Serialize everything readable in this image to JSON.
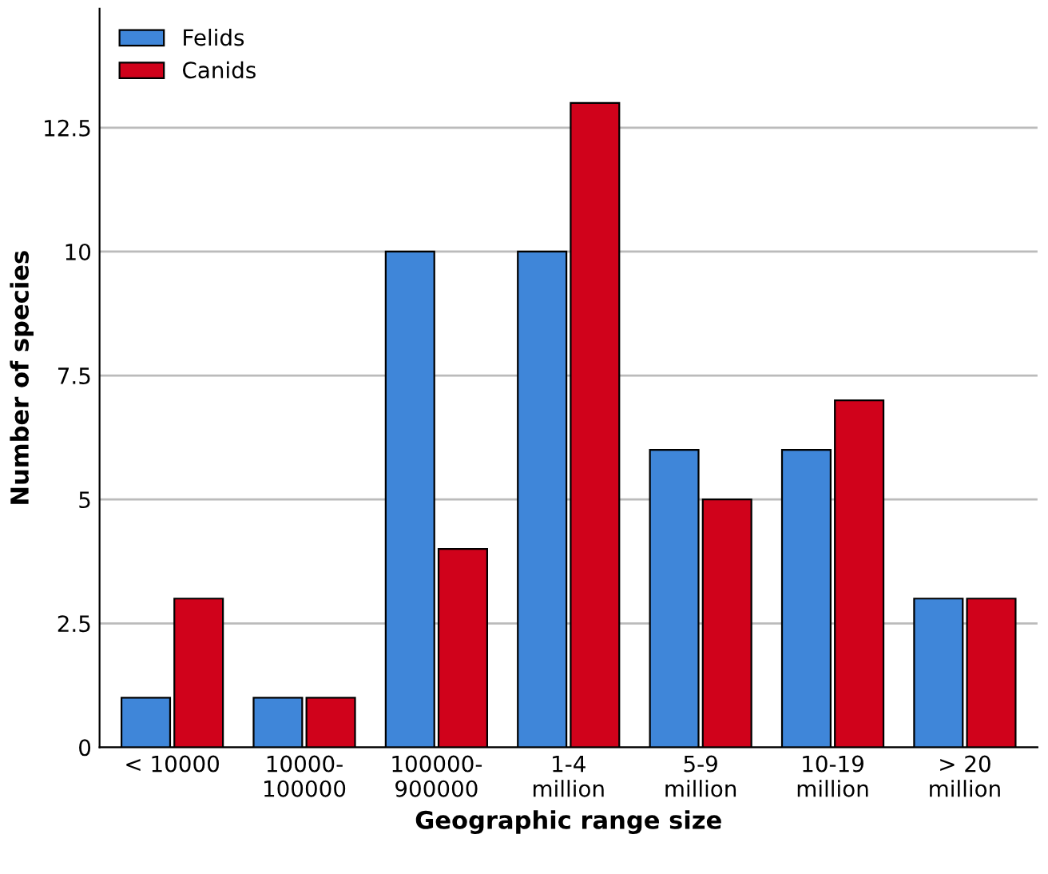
{
  "chart_data": {
    "type": "bar",
    "xlabel": "Geographic range size",
    "ylabel": "Number of species",
    "categories": [
      "< 10000",
      "10000-\n100000",
      "100000-\n900000",
      "1-4\nmillion",
      "5-9\nmillion",
      "10-19\nmillion",
      "> 20\nmillion"
    ],
    "series": [
      {
        "name": "Felids",
        "color": "#3f86d9",
        "values": [
          1,
          1,
          10,
          10,
          6,
          6,
          3
        ]
      },
      {
        "name": "Canids",
        "color": "#d0021b",
        "values": [
          3,
          1,
          4,
          13,
          5,
          7,
          3
        ]
      }
    ],
    "ylim": [
      0,
      14.9
    ],
    "yticks": [
      0,
      2.5,
      5,
      7.5,
      10,
      12.5
    ],
    "grid": "y",
    "legend": "top left"
  }
}
